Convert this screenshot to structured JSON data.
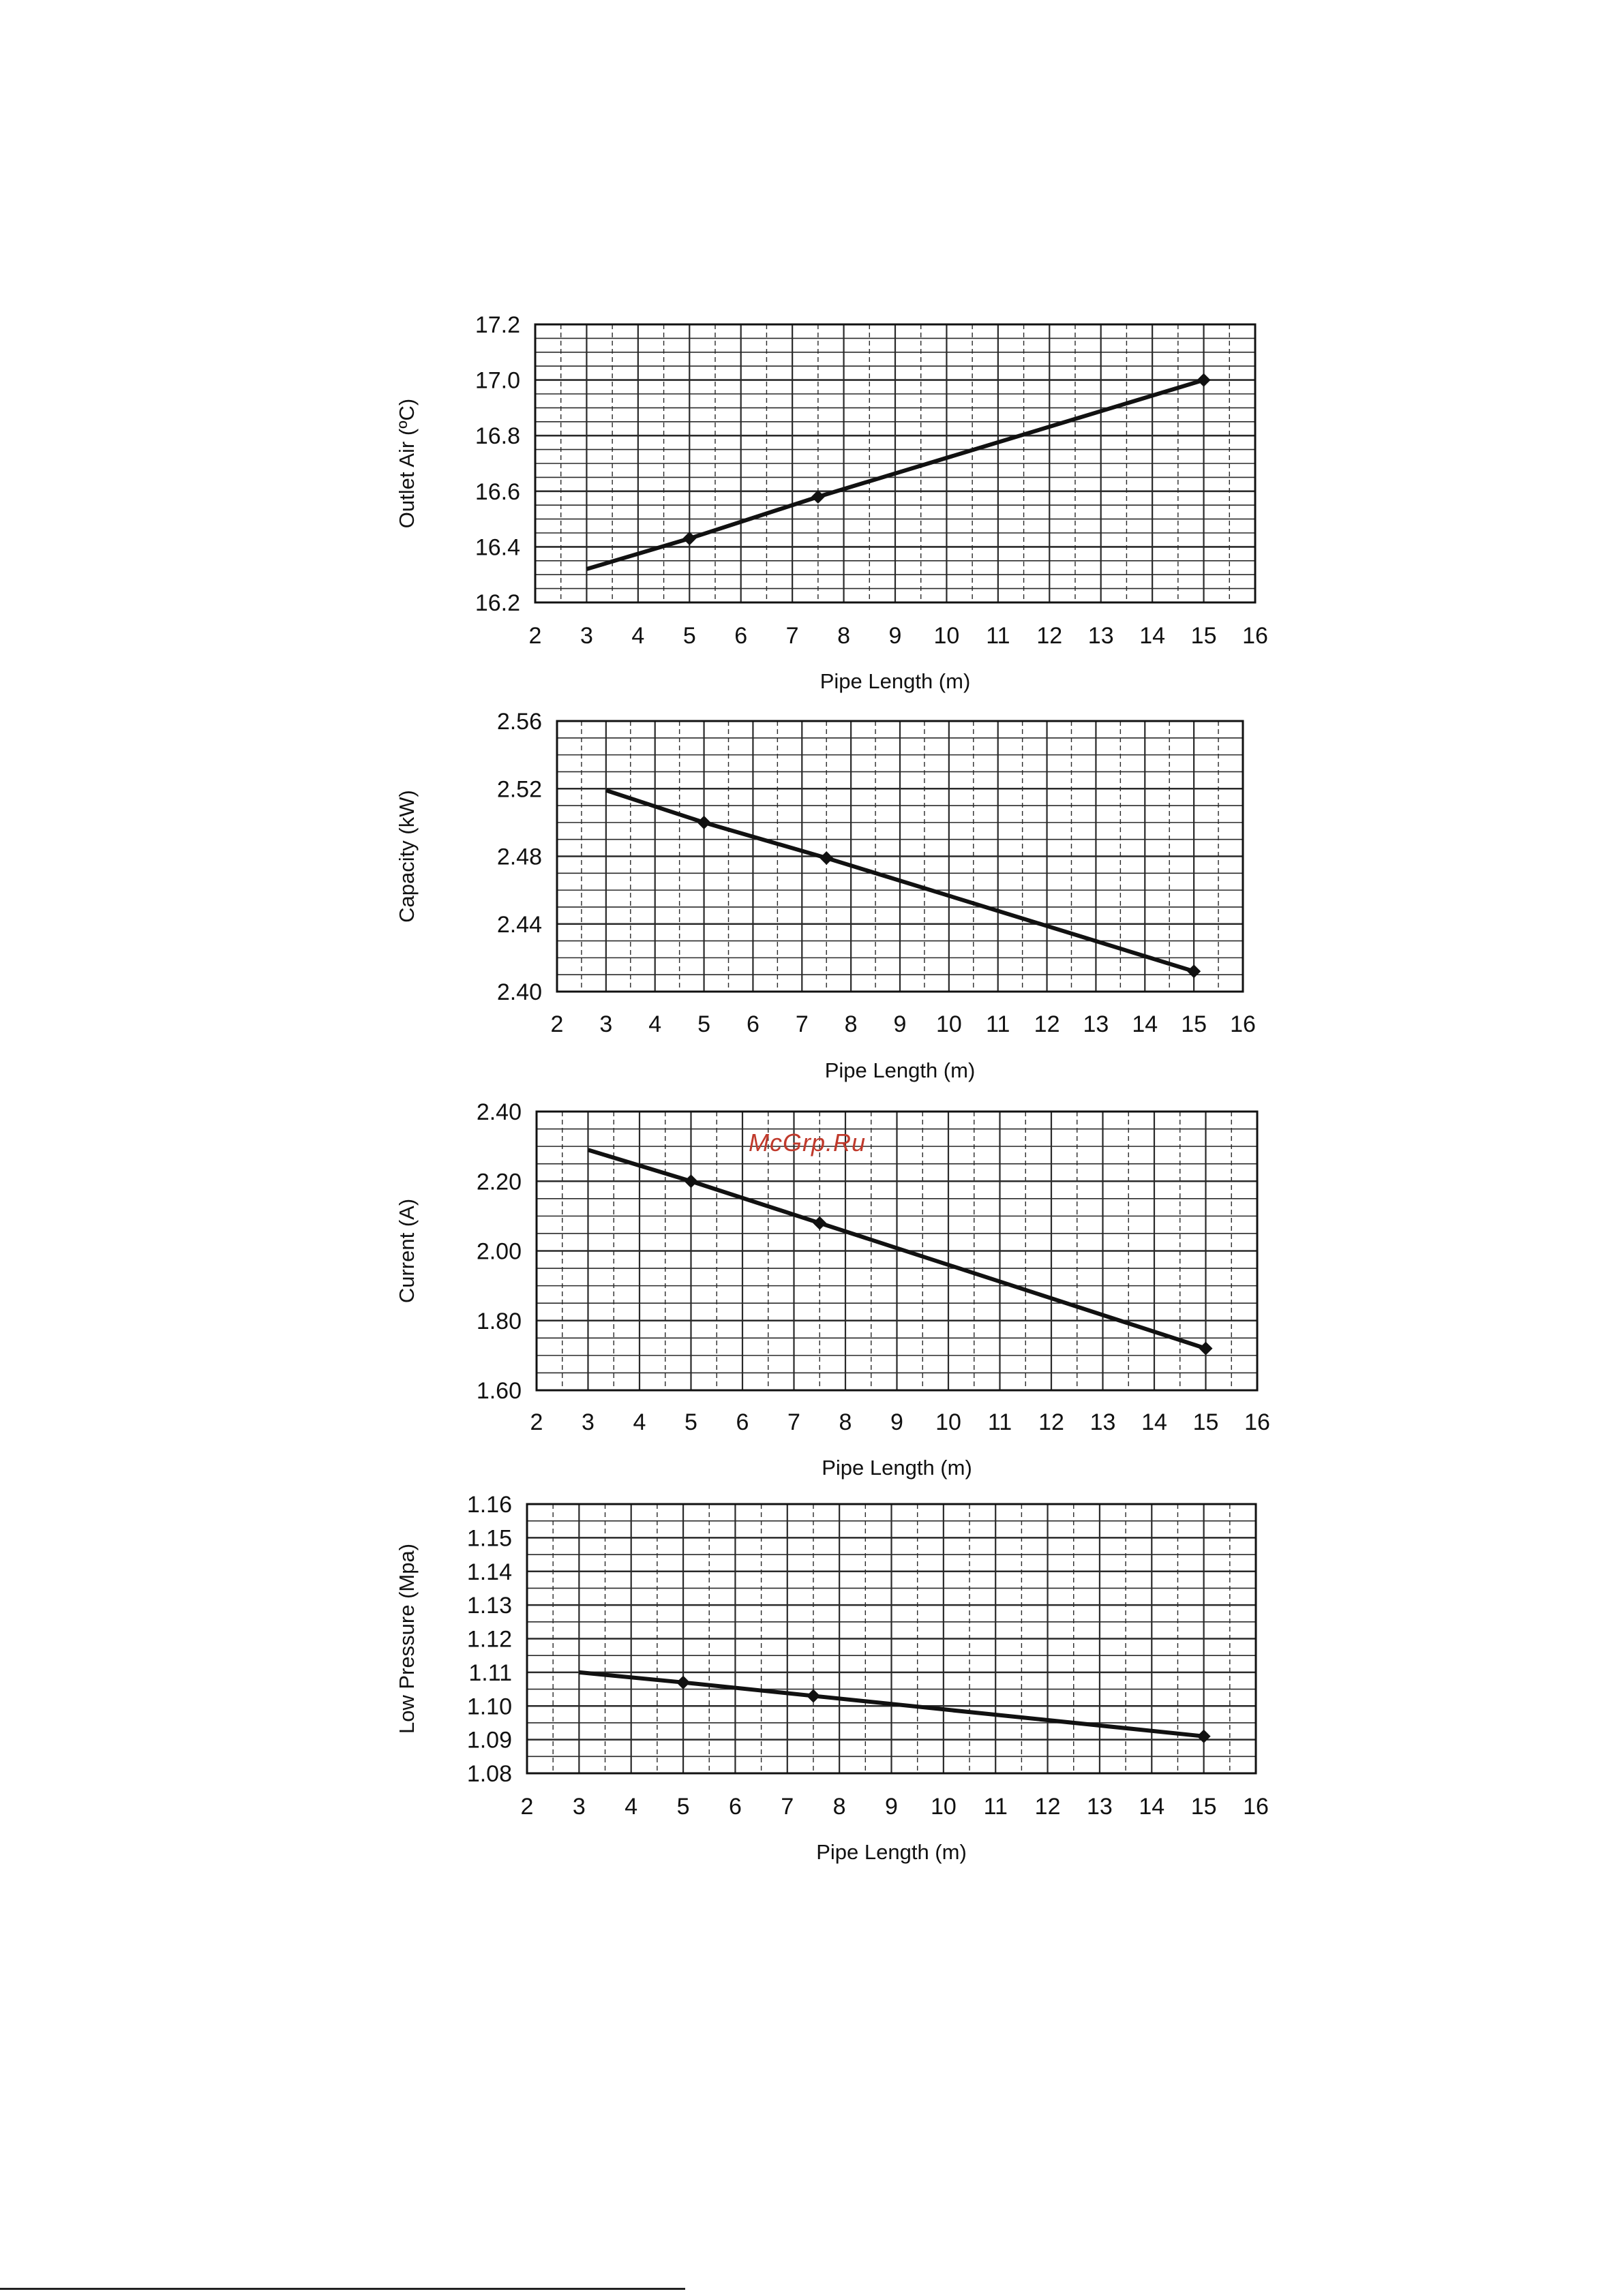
{
  "watermark": "McGrp.Ru",
  "colors": {
    "line": "#111111",
    "grid": "#2a2a2a",
    "watermark": "#c0392b"
  },
  "chart_data": [
    {
      "type": "line",
      "xlabel": "Pipe Length (m)",
      "ylabel": "Outlet Air (ºC)",
      "xlim": [
        2,
        16
      ],
      "ylim": [
        16.2,
        17.2
      ],
      "xticks": [
        "2",
        "3",
        "4",
        "5",
        "6",
        "7",
        "8",
        "9",
        "10",
        "11",
        "12",
        "13",
        "14",
        "15",
        "16"
      ],
      "yticks": [
        "16.2",
        "16.4",
        "16.6",
        "16.8",
        "17.0",
        "17.2"
      ],
      "grid": true,
      "x": [
        3,
        5,
        7.5,
        15
      ],
      "y": [
        16.32,
        16.43,
        16.58,
        17.0
      ],
      "markers": [
        false,
        true,
        true,
        true
      ]
    },
    {
      "type": "line",
      "xlabel": "Pipe Length (m)",
      "ylabel": "Capacity (kW)",
      "xlim": [
        2,
        16
      ],
      "ylim": [
        2.4,
        2.56
      ],
      "xticks": [
        "2",
        "3",
        "4",
        "5",
        "6",
        "7",
        "8",
        "9",
        "10",
        "11",
        "12",
        "13",
        "14",
        "15",
        "16"
      ],
      "yticks": [
        "2.40",
        "2.44",
        "2.48",
        "2.52",
        "2.56"
      ],
      "grid": true,
      "x": [
        3,
        5,
        7.5,
        15
      ],
      "y": [
        2.519,
        2.5,
        2.479,
        2.412
      ],
      "markers": [
        false,
        true,
        true,
        true
      ]
    },
    {
      "type": "line",
      "xlabel": "Pipe Length (m)",
      "ylabel": "Current (A)",
      "xlim": [
        2,
        16
      ],
      "ylim": [
        1.6,
        2.4
      ],
      "xticks": [
        "2",
        "3",
        "4",
        "5",
        "6",
        "7",
        "8",
        "9",
        "10",
        "11",
        "12",
        "13",
        "14",
        "15",
        "16"
      ],
      "yticks": [
        "1.60",
        "1.80",
        "2.00",
        "2.20",
        "2.40"
      ],
      "grid": true,
      "x": [
        3,
        5,
        7.5,
        15
      ],
      "y": [
        2.29,
        2.2,
        2.08,
        1.72
      ],
      "markers": [
        false,
        true,
        true,
        true
      ]
    },
    {
      "type": "line",
      "xlabel": "Pipe Length (m)",
      "ylabel": "Low Pressure (Mpa)",
      "xlim": [
        2,
        16
      ],
      "ylim": [
        1.08,
        1.16
      ],
      "xticks": [
        "2",
        "3",
        "4",
        "5",
        "6",
        "7",
        "8",
        "9",
        "10",
        "11",
        "12",
        "13",
        "14",
        "15",
        "16"
      ],
      "yticks": [
        "1.08",
        "1.09",
        "1.10",
        "1.11",
        "1.12",
        "1.13",
        "1.14",
        "1.15",
        "1.16"
      ],
      "grid": true,
      "x": [
        3,
        5,
        7.5,
        15
      ],
      "y": [
        1.11,
        1.107,
        1.103,
        1.091
      ],
      "markers": [
        false,
        true,
        true,
        true
      ]
    }
  ]
}
